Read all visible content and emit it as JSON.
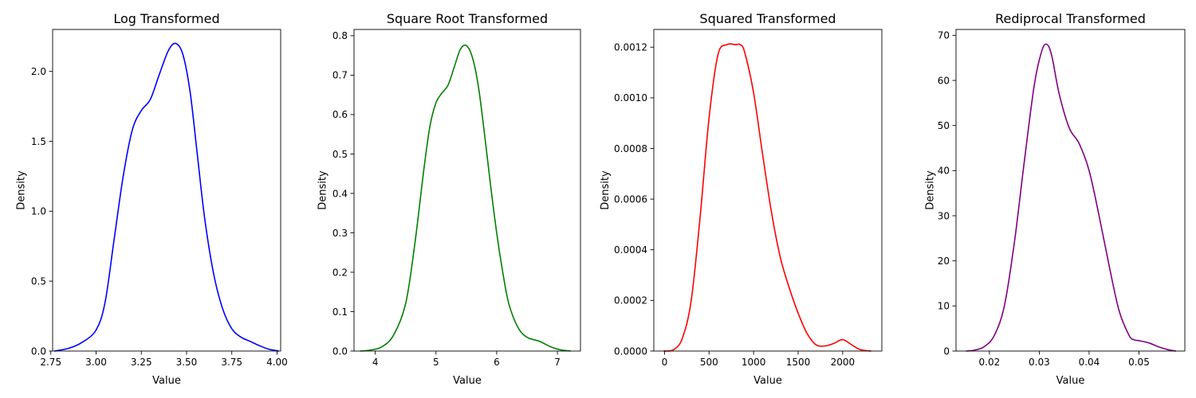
{
  "chart_data": [
    {
      "type": "line",
      "title": "Log Transformed",
      "xlabel": "Value",
      "ylabel": "Density",
      "xlim": [
        2.76,
        4.02
      ],
      "ylim": [
        0,
        2.3
      ],
      "xticks": [
        2.75,
        3.0,
        3.25,
        3.5,
        3.75,
        4.0
      ],
      "xtick_labels": [
        "2.75",
        "3.00",
        "3.25",
        "3.50",
        "3.75",
        "4.00"
      ],
      "yticks": [
        0,
        0.5,
        1.0,
        1.5,
        2.0
      ],
      "ytick_labels": [
        "0.0",
        "0.5",
        "1.0",
        "1.5",
        "2.0"
      ],
      "grid": false,
      "series": [
        {
          "color": "#0000ff",
          "x": [
            2.77,
            2.85,
            2.92,
            3.0,
            3.05,
            3.1,
            3.15,
            3.2,
            3.25,
            3.3,
            3.35,
            3.4,
            3.44,
            3.48,
            3.52,
            3.56,
            3.6,
            3.65,
            3.7,
            3.75,
            3.8,
            3.85,
            3.9,
            3.95,
            4.01
          ],
          "y": [
            0.0,
            0.02,
            0.06,
            0.15,
            0.35,
            0.8,
            1.25,
            1.58,
            1.72,
            1.8,
            1.98,
            2.15,
            2.2,
            2.12,
            1.85,
            1.4,
            0.95,
            0.55,
            0.3,
            0.16,
            0.1,
            0.07,
            0.04,
            0.015,
            0.0
          ]
        }
      ]
    },
    {
      "type": "line",
      "title": "Square Root Transformed",
      "xlabel": "Value",
      "ylabel": "Density",
      "xlim": [
        3.65,
        7.38
      ],
      "ylim": [
        0,
        0.816
      ],
      "xticks": [
        4,
        5,
        6,
        7
      ],
      "xtick_labels": [
        "4",
        "5",
        "6",
        "7"
      ],
      "yticks": [
        0,
        0.1,
        0.2,
        0.3,
        0.4,
        0.5,
        0.6,
        0.7,
        0.8
      ],
      "ytick_labels": [
        "0.0",
        "0.1",
        "0.2",
        "0.3",
        "0.4",
        "0.5",
        "0.6",
        "0.7",
        "0.8"
      ],
      "grid": false,
      "series": [
        {
          "color": "#008000",
          "x": [
            3.75,
            3.9,
            4.1,
            4.3,
            4.5,
            4.65,
            4.8,
            4.9,
            5.0,
            5.1,
            5.2,
            5.3,
            5.4,
            5.5,
            5.6,
            5.7,
            5.8,
            5.9,
            6.0,
            6.1,
            6.2,
            6.35,
            6.5,
            6.7,
            6.9,
            7.05,
            7.22
          ],
          "y": [
            0.0,
            0.002,
            0.01,
            0.04,
            0.12,
            0.27,
            0.46,
            0.57,
            0.63,
            0.655,
            0.675,
            0.72,
            0.765,
            0.775,
            0.745,
            0.67,
            0.55,
            0.42,
            0.3,
            0.2,
            0.12,
            0.06,
            0.035,
            0.025,
            0.01,
            0.003,
            0.0
          ]
        }
      ]
    },
    {
      "type": "line",
      "title": "Squared Transformed",
      "xlabel": "Value",
      "ylabel": "Density",
      "xlim": [
        -120,
        2440
      ],
      "ylim": [
        0,
        0.00127
      ],
      "xticks": [
        0,
        500,
        1000,
        1500,
        2000
      ],
      "xtick_labels": [
        "0",
        "500",
        "1000",
        "1500",
        "2000"
      ],
      "yticks": [
        0,
        0.0002,
        0.0004,
        0.0006,
        0.0008,
        0.001,
        0.0012
      ],
      "ytick_labels": [
        "0.0000",
        "0.0002",
        "0.0004",
        "0.0006",
        "0.0008",
        "0.0010",
        "0.0012"
      ],
      "grid": false,
      "series": [
        {
          "color": "#ff0000",
          "x": [
            -10,
            100,
            200,
            300,
            400,
            500,
            600,
            700,
            800,
            850,
            900,
            1000,
            1100,
            1200,
            1300,
            1400,
            1500,
            1600,
            1700,
            1800,
            1900,
            2000,
            2100,
            2200,
            2320
          ],
          "y": [
            0.0,
            5e-06,
            5e-05,
            0.0002,
            0.00053,
            0.00092,
            0.00117,
            0.00121,
            0.00121,
            0.00121,
            0.00118,
            0.00102,
            0.00078,
            0.00055,
            0.00037,
            0.00025,
            0.00015,
            7e-05,
            2.5e-05,
            2e-05,
            3e-05,
            4.5e-05,
            2.5e-05,
            5e-06,
            0.0
          ]
        }
      ]
    },
    {
      "type": "line",
      "title": "Rediprocal Transformed",
      "xlabel": "Value",
      "ylabel": "Density",
      "xlim": [
        0.0133,
        0.0592
      ],
      "ylim": [
        0,
        71.3
      ],
      "xticks": [
        0.02,
        0.03,
        0.04,
        0.05
      ],
      "xtick_labels": [
        "0.02",
        "0.03",
        "0.04",
        "0.05"
      ],
      "yticks": [
        0,
        10,
        20,
        30,
        40,
        50,
        60,
        70
      ],
      "ytick_labels": [
        "0",
        "10",
        "20",
        "30",
        "40",
        "50",
        "60",
        "70"
      ],
      "grid": false,
      "series": [
        {
          "color": "#800080",
          "x": [
            0.0153,
            0.017,
            0.019,
            0.021,
            0.023,
            0.025,
            0.027,
            0.029,
            0.0305,
            0.0315,
            0.0325,
            0.034,
            0.036,
            0.038,
            0.04,
            0.042,
            0.044,
            0.046,
            0.048,
            0.049,
            0.05,
            0.052,
            0.054,
            0.056,
            0.0574
          ],
          "y": [
            0.0,
            0.2,
            1.0,
            3.5,
            10.0,
            24.0,
            42.0,
            59.0,
            66.5,
            68.0,
            65.5,
            57.0,
            49.5,
            46.0,
            40.0,
            30.0,
            19.0,
            9.0,
            3.5,
            2.5,
            2.3,
            1.8,
            0.9,
            0.25,
            0.0
          ]
        }
      ]
    }
  ]
}
